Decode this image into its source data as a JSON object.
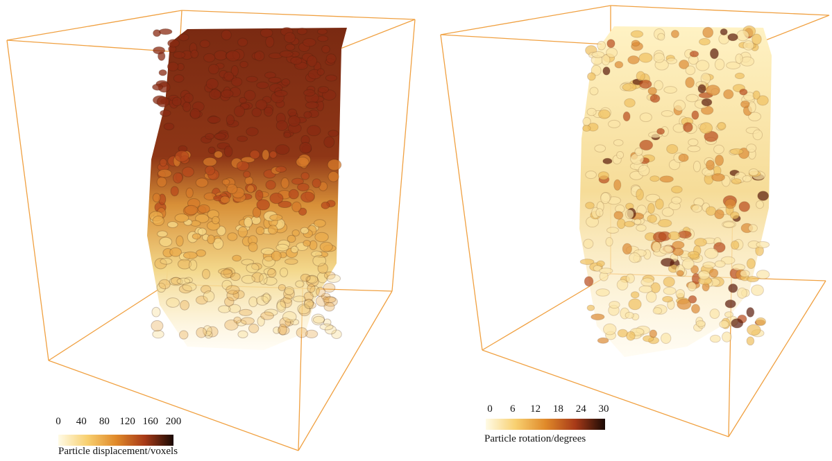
{
  "panels": [
    {
      "colorbar": {
        "ticks": [
          0,
          40,
          80,
          120,
          160,
          200
        ],
        "label": "Particle displacement/voxels"
      }
    },
    {
      "colorbar": {
        "ticks": [
          0,
          6,
          12,
          18,
          24,
          30
        ],
        "label": "Particle rotation/degrees"
      }
    }
  ]
}
